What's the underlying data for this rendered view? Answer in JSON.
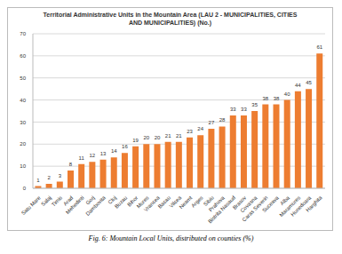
{
  "chart_data": {
    "type": "bar",
    "title": "Territorial Administrative Units in the Mountain Area (LAU 2 - MUNICIPALITIES, CITIES AND MUNICIPALITIES) (No.)",
    "caption": "Fig. 6: Mountain Local Units, distributed on counties (%)",
    "categories": [
      "Satu Mare",
      "Salaj",
      "Timis",
      "Arad",
      "Mehedinti",
      "Gorj",
      "Dambovita",
      "Cluj",
      "Buzau",
      "Bihor",
      "Mures",
      "Vrancea",
      "Bacau",
      "Vilcea",
      "Neamt",
      "Arges",
      "Sibiu",
      "Prahova",
      "Bistrita Nasaud",
      "Brasov",
      "Covasna",
      "Caras Severin",
      "Suceava",
      "Alba",
      "Maramures",
      "Hunedoara",
      "Harghita"
    ],
    "values": [
      1,
      2,
      3,
      8,
      11,
      12,
      13,
      14,
      16,
      19,
      20,
      20,
      21,
      21,
      23,
      24,
      27,
      28,
      33,
      33,
      35,
      38,
      38,
      40,
      44,
      45,
      61
    ],
    "color": "#ed7d31",
    "ylim": [
      0,
      70
    ],
    "yticks": [
      0,
      10,
      20,
      30,
      40,
      50,
      60,
      70
    ],
    "grid": true,
    "data_labels": true
  }
}
